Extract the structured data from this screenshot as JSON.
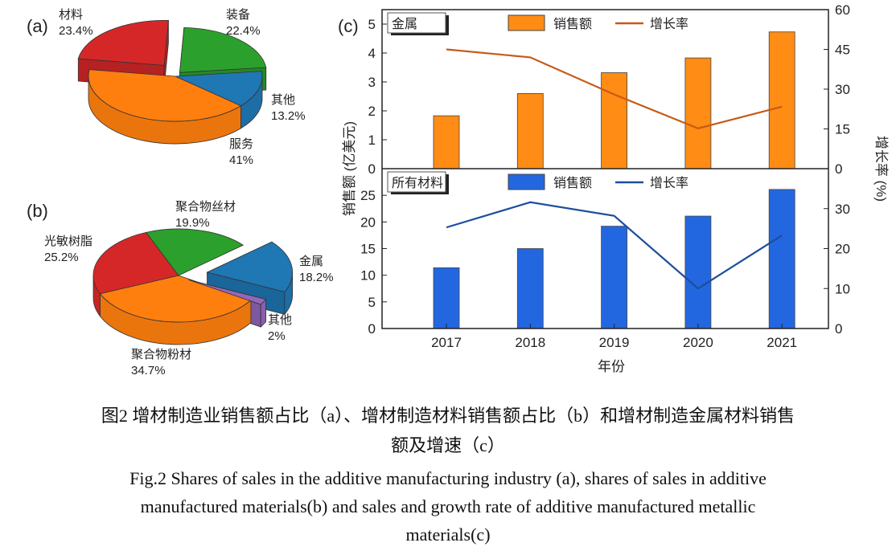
{
  "chart_data": [
    {
      "type": "pie",
      "panel_label": "(a)",
      "style": "3d-exploded",
      "slices": [
        {
          "name": "服务",
          "value": 41,
          "label": "41%",
          "color": "#ff7f0e"
        },
        {
          "name": "材料",
          "value": 23.4,
          "label": "23.4%",
          "color": "#d62728"
        },
        {
          "name": "装备",
          "value": 22.4,
          "label": "22.4%",
          "color": "#2ca02c"
        },
        {
          "name": "其他",
          "value": 13.2,
          "label": "13.2%",
          "color": "#1f77b4"
        }
      ]
    },
    {
      "type": "pie",
      "panel_label": "(b)",
      "style": "3d-exploded",
      "slices": [
        {
          "name": "聚合物粉材",
          "value": 34.7,
          "label": "34.7%",
          "color": "#ff7f0e"
        },
        {
          "name": "光敏树脂",
          "value": 25.2,
          "label": "25.2%",
          "color": "#d62728"
        },
        {
          "name": "聚合物丝材",
          "value": 19.9,
          "label": "19.9%",
          "color": "#2ca02c"
        },
        {
          "name": "金属",
          "value": 18.2,
          "label": "18.2%",
          "color": "#1f77b4"
        },
        {
          "name": "其他",
          "value": 2,
          "label": "2%",
          "color": "#9467bd"
        }
      ]
    },
    {
      "type": "bar+line",
      "panel_label": "(c)",
      "xlabel": "年份",
      "ylabel": "销售额 (亿美元)",
      "y2label": "增长率 (%)",
      "categories": [
        "2017",
        "2018",
        "2019",
        "2020",
        "2021"
      ],
      "panels": [
        {
          "tag": "金属",
          "ylim": [
            0,
            5.5
          ],
          "yticks": [
            0,
            1,
            2,
            3,
            4,
            5
          ],
          "y2lim": [
            0,
            60
          ],
          "y2ticks": [
            0,
            15,
            30,
            45,
            60
          ],
          "legend": [
            "销售额",
            "增长率"
          ],
          "bar_color": "#ff8c14",
          "line_color": "#c65a16",
          "sales": [
            1.83,
            2.6,
            3.32,
            3.83,
            4.73
          ],
          "growth": [
            45,
            42,
            28,
            15.2,
            23.4
          ]
        },
        {
          "tag": "所有材料",
          "ylim": [
            0,
            30
          ],
          "yticks": [
            0,
            5,
            10,
            15,
            20,
            25
          ],
          "y2lim": [
            0,
            40
          ],
          "y2ticks": [
            0,
            10,
            20,
            30
          ],
          "legend": [
            "销售额",
            "增长率"
          ],
          "bar_color": "#2367e0",
          "line_color": "#1c4e9c",
          "sales": [
            11.4,
            15.0,
            19.2,
            21.1,
            26.1
          ],
          "growth": [
            25.3,
            31.6,
            28.2,
            10.0,
            23.3
          ]
        }
      ]
    }
  ],
  "caption": {
    "cn_line1": "图2  增材制造业销售额占比（a）、增材制造材料销售额占比（b）和增材制造金属材料销售",
    "cn_line2": "额及增速（c）",
    "en_line1": "Fig.2 Shares of sales in the additive manufacturing industry (a), shares of sales in additive",
    "en_line2": "manufactured materials(b) and sales and growth rate of additive manufactured metallic",
    "en_line3": "materials(c)"
  }
}
